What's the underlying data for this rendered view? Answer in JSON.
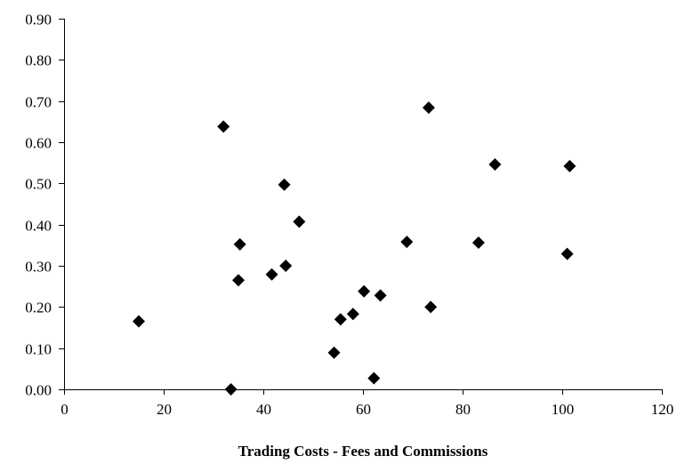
{
  "chart_data": {
    "type": "scatter",
    "title": "",
    "xlabel": "Trading Costs - Fees and Commissions",
    "ylabel": "",
    "xlim": [
      0,
      120
    ],
    "ylim": [
      0,
      0.9
    ],
    "x_ticks": [
      "0",
      "20",
      "40",
      "60",
      "80",
      "100",
      "120"
    ],
    "y_ticks": [
      "0.00",
      "0.10",
      "0.20",
      "0.30",
      "0.40",
      "0.50",
      "0.60",
      "0.70",
      "0.80",
      "0.90"
    ],
    "grid": false,
    "legend": "none",
    "marker": "diamond",
    "marker_color": "#000000",
    "series": [
      {
        "points": [
          {
            "x": 15.0,
            "y": 0.165
          },
          {
            "x": 32.0,
            "y": 0.638
          },
          {
            "x": 33.5,
            "y": 0.0
          },
          {
            "x": 35.0,
            "y": 0.265
          },
          {
            "x": 35.3,
            "y": 0.352
          },
          {
            "x": 41.7,
            "y": 0.279
          },
          {
            "x": 44.2,
            "y": 0.497
          },
          {
            "x": 44.5,
            "y": 0.3
          },
          {
            "x": 47.2,
            "y": 0.407
          },
          {
            "x": 54.2,
            "y": 0.089
          },
          {
            "x": 55.5,
            "y": 0.17
          },
          {
            "x": 58.0,
            "y": 0.183
          },
          {
            "x": 60.2,
            "y": 0.238
          },
          {
            "x": 62.2,
            "y": 0.027
          },
          {
            "x": 63.5,
            "y": 0.228
          },
          {
            "x": 68.8,
            "y": 0.358
          },
          {
            "x": 73.2,
            "y": 0.684
          },
          {
            "x": 73.6,
            "y": 0.2
          },
          {
            "x": 83.2,
            "y": 0.356
          },
          {
            "x": 86.5,
            "y": 0.546
          },
          {
            "x": 101.0,
            "y": 0.329
          },
          {
            "x": 101.5,
            "y": 0.542
          }
        ]
      }
    ]
  }
}
